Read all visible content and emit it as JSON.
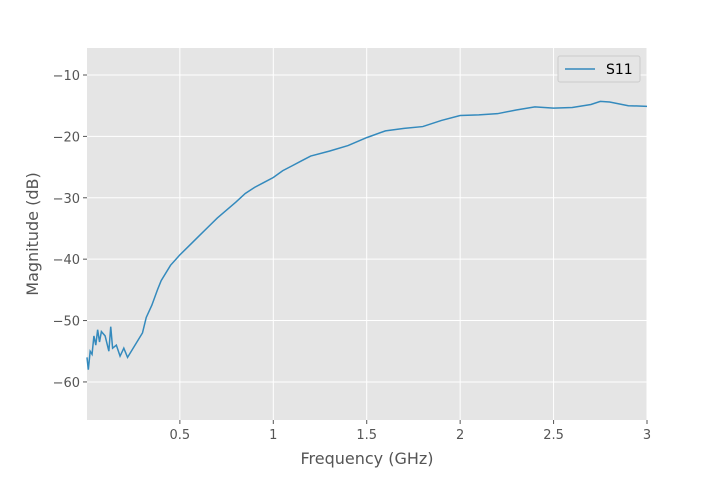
{
  "chart_data": {
    "type": "line",
    "xlabel": "Frequency (GHz)",
    "ylabel": "Magnitude (dB)",
    "x": [
      0.003,
      0.01,
      0.02,
      0.03,
      0.04,
      0.05,
      0.06,
      0.07,
      0.08,
      0.1,
      0.12,
      0.13,
      0.14,
      0.16,
      0.18,
      0.2,
      0.22,
      0.24,
      0.26,
      0.28,
      0.3,
      0.32,
      0.35,
      0.38,
      0.4,
      0.45,
      0.5,
      0.55,
      0.6,
      0.65,
      0.7,
      0.75,
      0.8,
      0.85,
      0.9,
      0.95,
      1.0,
      1.05,
      1.1,
      1.15,
      1.2,
      1.3,
      1.4,
      1.5,
      1.6,
      1.7,
      1.8,
      1.9,
      2.0,
      2.1,
      2.2,
      2.3,
      2.4,
      2.5,
      2.6,
      2.7,
      2.75,
      2.8,
      2.9,
      3.0
    ],
    "series": [
      {
        "name": "S11",
        "color": "#348abd",
        "values": [
          -56,
          -58,
          -55,
          -55.5,
          -52.5,
          -54,
          -51.5,
          -53.5,
          -51.8,
          -52.5,
          -55,
          -51,
          -54.5,
          -54,
          -55.8,
          -54.5,
          -56,
          -55,
          -54,
          -53,
          -52,
          -49.5,
          -47.5,
          -45,
          -43.5,
          -41,
          -39.3,
          -37.8,
          -36.3,
          -34.8,
          -33.3,
          -32,
          -30.7,
          -29.3,
          -28.3,
          -27.5,
          -26.7,
          -25.6,
          -24.8,
          -24,
          -23.2,
          -22.4,
          -21.5,
          -20.2,
          -19.1,
          -18.7,
          -18.4,
          -17.4,
          -16.6,
          -16.5,
          -16.3,
          -15.7,
          -15.2,
          -15.4,
          -15.3,
          -14.8,
          -14.3,
          -14.4,
          -15,
          -15.1
        ]
      }
    ],
    "xlim": [
      0.003,
      3
    ],
    "ylim": [
      -66.2,
      -5.6
    ],
    "xticks": [
      0.5,
      1,
      1.5,
      2,
      2.5,
      3
    ],
    "yticks": [
      {
        "value": -60,
        "label": "−60"
      },
      {
        "value": -50,
        "label": "−50"
      },
      {
        "value": -40,
        "label": "−40"
      },
      {
        "value": -30,
        "label": "−30"
      },
      {
        "value": -20,
        "label": "−20"
      },
      {
        "value": -10,
        "label": "−10"
      }
    ],
    "grid": true,
    "legend": "upper right"
  }
}
